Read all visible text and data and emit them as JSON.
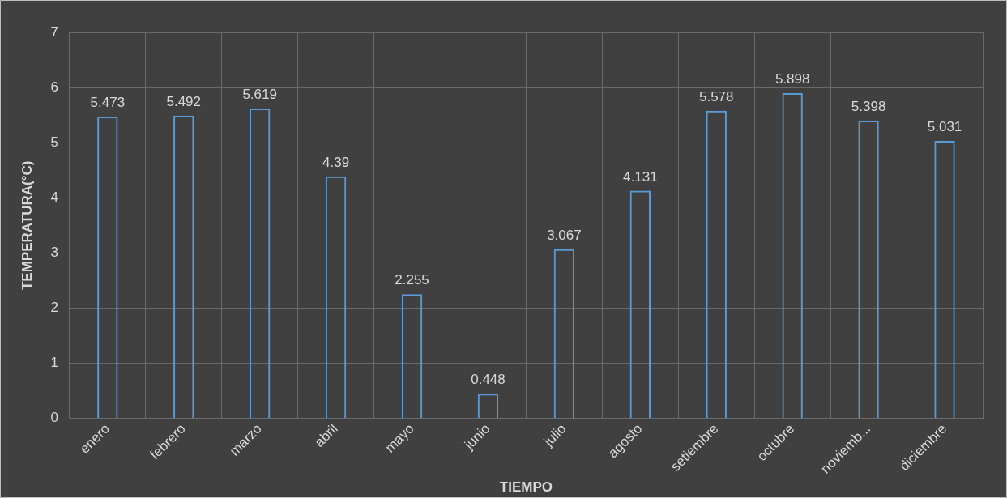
{
  "chart_data": {
    "type": "bar",
    "xlabel": "TIEMPO",
    "ylabel": "TEMPERATURA(°C)",
    "categories": [
      "enero",
      "febrero",
      "marzo",
      "abril",
      "mayo",
      "junio",
      "julio",
      "agosto",
      "setiembre",
      "octubre",
      "noviemb...",
      "diciembre"
    ],
    "values": [
      5.473,
      5.492,
      5.619,
      4.39,
      2.255,
      0.448,
      3.067,
      4.131,
      5.578,
      5.898,
      5.398,
      5.031
    ],
    "color": "#5b9bd5",
    "ylim": [
      0,
      7
    ],
    "yticks": [
      0,
      1,
      2,
      3,
      4,
      5,
      6,
      7
    ],
    "grid": true,
    "data_labels": true,
    "legend": false
  }
}
